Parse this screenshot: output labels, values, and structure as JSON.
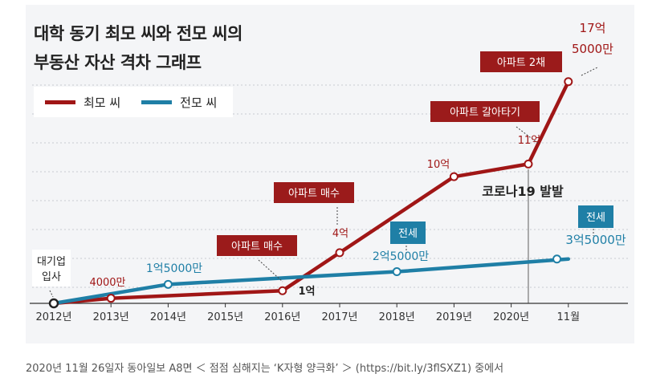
{
  "chart_data": {
    "type": "line",
    "title_lines": [
      "대학 동기 최모 씨와 전모 씨의",
      "부동산 자산 격차 그래프"
    ],
    "categories": [
      "2012년",
      "2013년",
      "2014년",
      "2015년",
      "2016년",
      "2017년",
      "2018년",
      "2019년",
      "2020년",
      "11월"
    ],
    "x": [
      0,
      1,
      2,
      3,
      4,
      5,
      6,
      7,
      8,
      9
    ],
    "series": [
      {
        "name": "최모 씨",
        "color": "#a01616",
        "points": [
          [
            0,
            0
          ],
          [
            1,
            0.4
          ],
          [
            4,
            1
          ],
          [
            5,
            4
          ],
          [
            7,
            10
          ],
          [
            8.3,
            11
          ],
          [
            9,
            17.5
          ]
        ]
      },
      {
        "name": "전모 씨",
        "color": "#1f7fa6",
        "points": [
          [
            0,
            0
          ],
          [
            2,
            1.5
          ],
          [
            6,
            2.5
          ],
          [
            9,
            3.5
          ]
        ]
      }
    ],
    "ylim": [
      0,
      18.5
    ],
    "value_labels": [
      {
        "text": "4000만",
        "series": 0,
        "color": "#a01616"
      },
      {
        "text": "1억",
        "series": 0,
        "color": "#222222"
      },
      {
        "text": "4억",
        "series": 0,
        "color": "#a01616"
      },
      {
        "text": "10억",
        "series": 0,
        "color": "#a01616"
      },
      {
        "text": "11억",
        "series": 0,
        "color": "#a01616"
      },
      {
        "text": "17억",
        "series": 0,
        "color": "#a01616"
      },
      {
        "text": "5000만",
        "series": 0,
        "color": "#a01616"
      },
      {
        "text": "1억5000만",
        "series": 1,
        "color": "#1f7fa6"
      },
      {
        "text": "2억5000만",
        "series": 1,
        "color": "#1f7fa6"
      },
      {
        "text": "3억5000만",
        "series": 1,
        "color": "#1f7fa6"
      }
    ],
    "annotations": [
      {
        "text": "아파트 매수",
        "style": "red-box"
      },
      {
        "text": "아파트 매수",
        "style": "red-box"
      },
      {
        "text": "아파트 갈아타기",
        "style": "red-box"
      },
      {
        "text": "아파트 2채",
        "style": "red-box"
      },
      {
        "text": "전세",
        "style": "blue-box"
      },
      {
        "text": "전세",
        "style": "blue-box"
      },
      {
        "text": "대기업",
        "style": "white-box"
      },
      {
        "text": "입사",
        "style": "white-box"
      },
      {
        "text": "코로나19 발발",
        "style": "plain"
      }
    ]
  },
  "caption": "2020년 11월 26일자 동아일보 A8면 ＜ 점점 심해지는 ‘K자형 양극화’ ＞ (https://bit.ly/3flSXZ1) 중에서"
}
